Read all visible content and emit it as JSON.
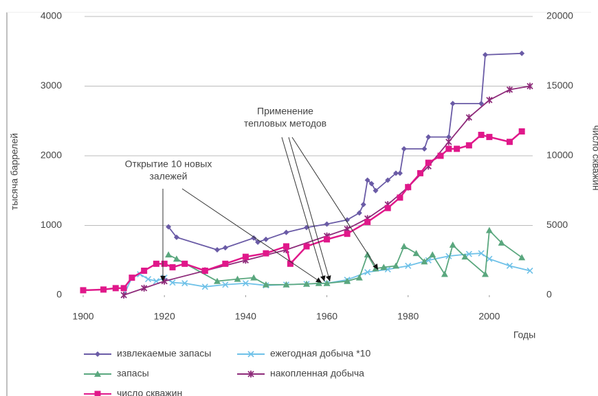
{
  "chart_data": {
    "type": "line",
    "xlabel": "Годы",
    "ylabel": "тысяча баррелей",
    "y2label": "число скважин",
    "xlim": [
      1900,
      2010
    ],
    "xticks": [
      1900,
      1920,
      1940,
      1960,
      1980,
      2000
    ],
    "ylim": [
      0,
      4000
    ],
    "yticks": [
      0,
      1000,
      2000,
      3000,
      4000
    ],
    "y2lim": [
      0,
      20000
    ],
    "y2ticks": [
      0,
      5000,
      10000,
      15000,
      20000
    ],
    "grid": true,
    "legend": "bottom",
    "annotations": [
      {
        "text": [
          "Открытие 10 новых",
          "залежей"
        ]
      },
      {
        "text": [
          "Применение",
          "тепловых методов"
        ]
      }
    ],
    "series": [
      {
        "name": "извлекаемые запасы",
        "color": "#6a5ba6",
        "marker": "diamond",
        "x": [
          1921,
          1923,
          1933,
          1935,
          1942,
          1943,
          1945,
          1950,
          1955,
          1960,
          1965,
          1968,
          1969,
          1970,
          1971,
          1972,
          1975,
          1977,
          1978,
          1979,
          1984,
          1985,
          1990,
          1991,
          1998,
          1999,
          2008
        ],
        "values": [
          980,
          830,
          650,
          680,
          820,
          760,
          800,
          900,
          970,
          1020,
          1080,
          1180,
          1300,
          1650,
          1600,
          1500,
          1650,
          1750,
          1750,
          2100,
          2100,
          2270,
          2270,
          2750,
          2750,
          3450,
          3470
        ]
      },
      {
        "name": "ежегодная добыча *10",
        "color": "#6ec1e8",
        "marker": "x",
        "x": [
          1910,
          1912,
          1914,
          1916,
          1918,
          1920,
          1922,
          1925,
          1930,
          1935,
          1940,
          1945,
          1950,
          1955,
          1960,
          1965,
          1970,
          1975,
          1980,
          1985,
          1990,
          1995,
          1998,
          2000,
          2005,
          2010
        ],
        "values": [
          0,
          250,
          300,
          230,
          200,
          250,
          180,
          170,
          120,
          150,
          170,
          140,
          150,
          160,
          170,
          220,
          330,
          370,
          420,
          500,
          560,
          590,
          600,
          520,
          420,
          350
        ]
      },
      {
        "name": "запасы",
        "color": "#5aa77e",
        "marker": "triangle",
        "x": [
          1921,
          1923,
          1933,
          1938,
          1942,
          1945,
          1950,
          1955,
          1958,
          1960,
          1965,
          1968,
          1970,
          1972,
          1974,
          1977,
          1979,
          1982,
          1984,
          1986,
          1989,
          1991,
          1994,
          1999,
          2000,
          2003,
          2008
        ],
        "values": [
          580,
          520,
          200,
          230,
          250,
          150,
          150,
          160,
          170,
          170,
          200,
          250,
          580,
          380,
          400,
          420,
          700,
          600,
          480,
          580,
          300,
          720,
          550,
          300,
          930,
          750,
          540
        ]
      },
      {
        "name": "накопленная добыча",
        "color": "#8e2b7a",
        "marker": "star",
        "x": [
          1910,
          1915,
          1920,
          1930,
          1940,
          1950,
          1960,
          1965,
          1970,
          1975,
          1980,
          1985,
          1990,
          1995,
          2000,
          2005,
          2010
        ],
        "values": [
          0,
          100,
          200,
          350,
          500,
          650,
          850,
          950,
          1100,
          1300,
          1550,
          1850,
          2200,
          2550,
          2800,
          2950,
          3000
        ]
      },
      {
        "name": "число скважин",
        "color": "#e0188a",
        "marker": "square",
        "axis": "y2",
        "x": [
          1900,
          1905,
          1908,
          1910,
          1912,
          1915,
          1918,
          1920,
          1922,
          1925,
          1930,
          1935,
          1940,
          1945,
          1950,
          1951,
          1955,
          1960,
          1965,
          1970,
          1975,
          1978,
          1980,
          1983,
          1985,
          1988,
          1990,
          1992,
          1995,
          1998,
          2000,
          2005,
          2008
        ],
        "values": [
          350,
          400,
          500,
          500,
          1250,
          1750,
          2250,
          2250,
          2000,
          2250,
          1750,
          2250,
          2750,
          3000,
          3500,
          2250,
          3500,
          4000,
          4400,
          5250,
          6250,
          7000,
          7750,
          8750,
          9500,
          10000,
          10500,
          10500,
          10750,
          11500,
          11350,
          11000,
          11750
        ]
      }
    ]
  }
}
